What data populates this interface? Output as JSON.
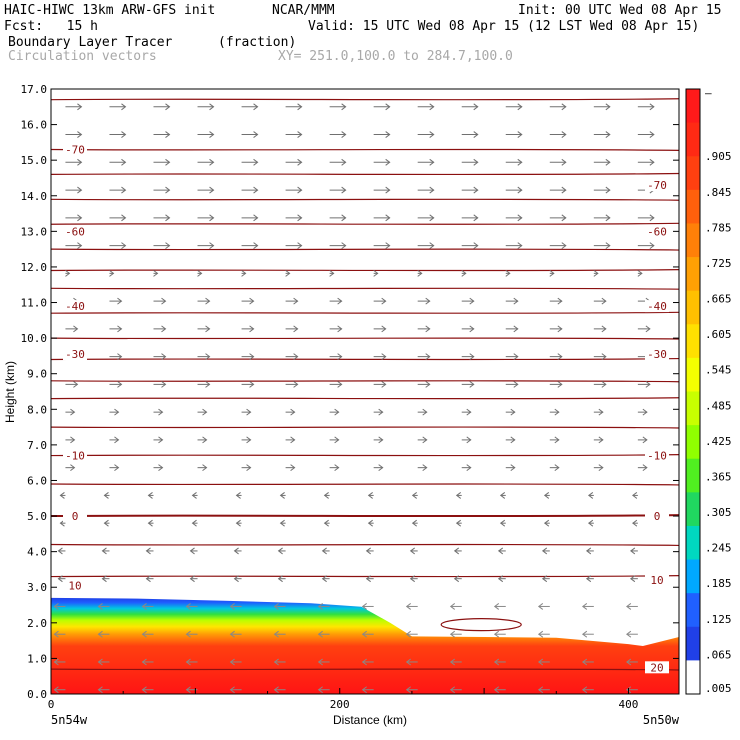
{
  "header": {
    "model": "HAIC-HIWC 13km ARW-GFS init",
    "org": "NCAR/MMM",
    "init": "Init: 00 UTC Wed 08 Apr 15",
    "fcst": "Fcst:   15 h",
    "valid": "Valid: 15 UTC Wed 08 Apr 15 (12 LST Wed 08 Apr 15)",
    "field": "Boundary Layer Tracer",
    "field_units": "(fraction)",
    "vectors": "Circulation vectors",
    "xy": "XY= 251.0,100.0 to 284.7,100.0"
  },
  "chart_data": {
    "type": "heatmap",
    "title": "Boundary Layer Tracer",
    "units": "(fraction)",
    "xlabel": "Distance (km)",
    "ylabel": "Height (km)",
    "xlim": [
      0,
      435
    ],
    "ylim": [
      0,
      17
    ],
    "x_ticks": [
      0,
      200,
      400
    ],
    "y_ticks": [
      0.0,
      1.0,
      2.0,
      3.0,
      4.0,
      5.0,
      6.0,
      7.0,
      8.0,
      9.0,
      10.0,
      11.0,
      12.0,
      13.0,
      14.0,
      15.0,
      16.0,
      17.0
    ],
    "x_end_labels": [
      "5n54w",
      "5n50w"
    ],
    "colorbar": {
      "labels": [
        "–",
        ".905",
        ".845",
        ".785",
        ".725",
        ".665",
        ".605",
        ".545",
        ".485",
        ".425",
        ".365",
        ".305",
        ".245",
        ".185",
        ".125",
        ".065",
        ".005"
      ],
      "colors": [
        "#ff1a1a",
        "#ff2a14",
        "#ff4010",
        "#ff600c",
        "#ff8008",
        "#ffa004",
        "#ffc000",
        "#ffe000",
        "#f4ff00",
        "#c8ff00",
        "#90ff00",
        "#50ef20",
        "#20d860",
        "#00d8c0",
        "#00a8ff",
        "#2060ff",
        "#2040e8",
        "#ffffff"
      ]
    },
    "tracer_top_km": {
      "x": [
        0,
        60,
        120,
        180,
        215,
        235,
        250,
        300,
        350,
        400,
        410,
        435
      ],
      "y": [
        2.7,
        2.68,
        2.62,
        2.55,
        2.45,
        2.0,
        1.62,
        1.6,
        1.58,
        1.4,
        1.35,
        1.6
      ]
    },
    "contours": {
      "labels": [
        "-70",
        "-70",
        "-60",
        "-60",
        "-40",
        "-40",
        "-30",
        "-30",
        "-10",
        "-10",
        "0",
        "0",
        "10",
        "10",
        "20"
      ],
      "levels_km": [
        16.7,
        15.3,
        14.6,
        13.9,
        13.2,
        12.5,
        11.9,
        11.4,
        10.7,
        10.0,
        9.4,
        8.8,
        8.3,
        7.5,
        6.7,
        5.9,
        5.0,
        4.2,
        3.3,
        0.7
      ]
    }
  }
}
